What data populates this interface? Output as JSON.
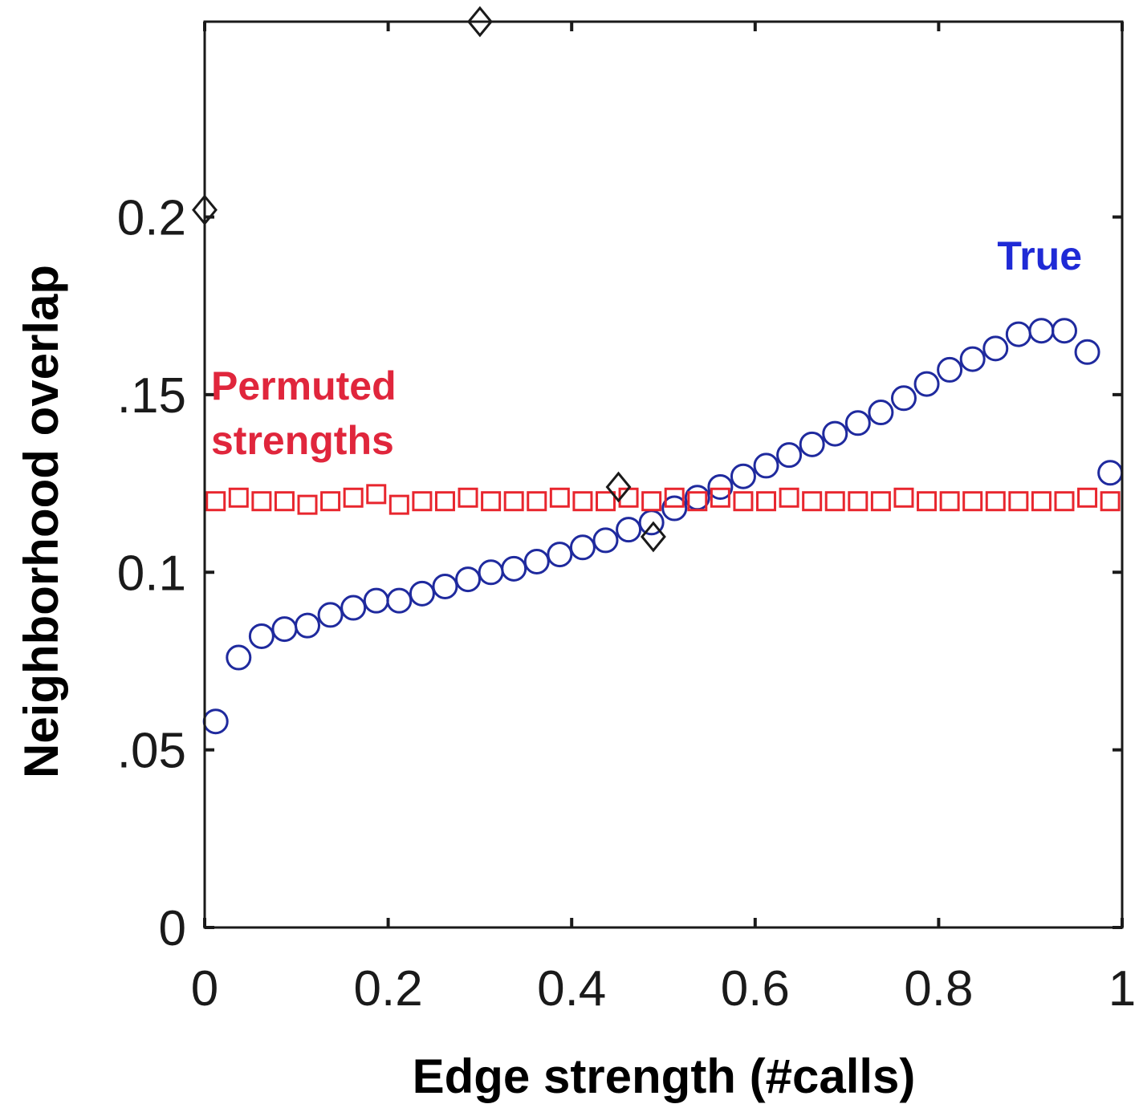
{
  "chart_data": {
    "type": "scatter",
    "xlabel": "Edge strength (#calls)",
    "ylabel": "Neighborhood  overlap",
    "xlim": [
      0,
      1
    ],
    "ylim": [
      0,
      0.255
    ],
    "grid": false,
    "x_ticks": [
      {
        "value": 0,
        "label": "0"
      },
      {
        "value": 0.2,
        "label": "0.2"
      },
      {
        "value": 0.4,
        "label": "0.4"
      },
      {
        "value": 0.6,
        "label": "0.6"
      },
      {
        "value": 0.8,
        "label": "0.8"
      },
      {
        "value": 1,
        "label": "1"
      }
    ],
    "y_ticks": [
      {
        "value": 0,
        "label": "0"
      },
      {
        "value": 0.05,
        "label": ".05"
      },
      {
        "value": 0.1,
        "label": "0.1"
      },
      {
        "value": 0.15,
        "label": ".15"
      },
      {
        "value": 0.2,
        "label": "0.2"
      }
    ],
    "series": [
      {
        "name": "True",
        "color": "#1f2a9e",
        "marker": "circle",
        "x": [
          0.012,
          0.037,
          0.062,
          0.087,
          0.112,
          0.137,
          0.162,
          0.187,
          0.212,
          0.237,
          0.262,
          0.287,
          0.312,
          0.337,
          0.362,
          0.387,
          0.412,
          0.437,
          0.462,
          0.487,
          0.512,
          0.537,
          0.562,
          0.587,
          0.612,
          0.637,
          0.662,
          0.687,
          0.712,
          0.737,
          0.762,
          0.787,
          0.812,
          0.837,
          0.862,
          0.887,
          0.912,
          0.937,
          0.962,
          0.987
        ],
        "y": [
          0.058,
          0.076,
          0.082,
          0.084,
          0.085,
          0.088,
          0.09,
          0.092,
          0.092,
          0.094,
          0.096,
          0.098,
          0.1,
          0.101,
          0.103,
          0.105,
          0.107,
          0.109,
          0.112,
          0.114,
          0.118,
          0.121,
          0.124,
          0.127,
          0.13,
          0.133,
          0.136,
          0.139,
          0.142,
          0.145,
          0.149,
          0.153,
          0.157,
          0.16,
          0.163,
          0.167,
          0.168,
          0.168,
          0.162,
          0.128
        ]
      },
      {
        "name": "Permuted strengths",
        "color": "#e8262e",
        "marker": "square",
        "x": [
          0.012,
          0.037,
          0.062,
          0.087,
          0.112,
          0.137,
          0.162,
          0.187,
          0.212,
          0.237,
          0.262,
          0.287,
          0.312,
          0.337,
          0.362,
          0.387,
          0.412,
          0.437,
          0.462,
          0.487,
          0.512,
          0.537,
          0.562,
          0.587,
          0.612,
          0.637,
          0.662,
          0.687,
          0.712,
          0.737,
          0.762,
          0.787,
          0.812,
          0.837,
          0.862,
          0.887,
          0.912,
          0.937,
          0.962,
          0.987
        ],
        "y": [
          0.12,
          0.121,
          0.12,
          0.12,
          0.119,
          0.12,
          0.121,
          0.122,
          0.119,
          0.12,
          0.12,
          0.121,
          0.12,
          0.12,
          0.12,
          0.121,
          0.12,
          0.12,
          0.121,
          0.12,
          0.121,
          0.12,
          0.121,
          0.12,
          0.12,
          0.121,
          0.12,
          0.12,
          0.12,
          0.12,
          0.121,
          0.12,
          0.12,
          0.12,
          0.12,
          0.12,
          0.12,
          0.12,
          0.121,
          0.12
        ]
      },
      {
        "name": "",
        "color": "#1a1a1a",
        "marker": "diamond",
        "x": [
          0.0,
          0.3,
          0.451,
          0.489
        ],
        "y": [
          0.202,
          0.255,
          0.124,
          0.11
        ]
      }
    ],
    "annotations": [
      {
        "text": "True",
        "color": "#1f2ad6"
      },
      {
        "text_lines": [
          "Permuted",
          "strengths"
        ],
        "color": "#e0263c"
      }
    ]
  }
}
